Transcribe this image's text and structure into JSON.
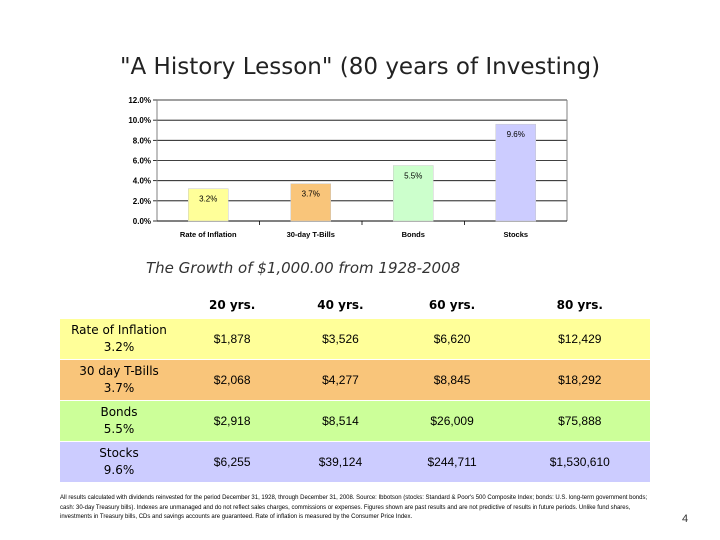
{
  "slide": {
    "title": "\"A History Lesson\" (80 years of Investing)",
    "subtitle": "The Growth of $1,000.00 from 1928-2008",
    "page_number": "4",
    "footnote": "All results calculated with dividends reinvested for the period December 31, 1928, through December 31, 2008. Source: Ibbotson (stocks: Standard & Poor's 500 Composite Index; bonds: U.S. long-term government bonds; cash: 30-day Treasury bills). Indexes are unmanaged and do not reflect sales charges, commissions or expenses. Figures shown are past results and are not predictive of results in future periods. Unlike fund shares, investments in Treasury bills, CDs and savings accounts are guaranteed. Rate of inflation is measured by the Consumer Price Index."
  },
  "chart_data": {
    "type": "bar",
    "categories": [
      "Rate of Inflation",
      "30-day T-Bills",
      "Bonds",
      "Stocks"
    ],
    "values": [
      3.2,
      3.7,
      5.5,
      9.6
    ],
    "data_labels": [
      "3.2%",
      "3.7%",
      "5.5%",
      "9.6%"
    ],
    "colors": [
      "#ffff99",
      "#f9c57a",
      "#ccffcc",
      "#ccccff"
    ],
    "ylim": [
      0,
      12
    ],
    "yticks": [
      0,
      2,
      4,
      6,
      8,
      10,
      12
    ],
    "ytick_labels": [
      "0.0%",
      "2.0%",
      "4.0%",
      "6.0%",
      "8.0%",
      "10.0%",
      "12.0%"
    ],
    "grid": true,
    "legend": "none"
  },
  "table": {
    "columns": [
      "20 yrs.",
      "40 yrs.",
      "60 yrs.",
      "80 yrs."
    ],
    "rows": [
      {
        "name": "Rate of Inflation",
        "rate": "3.2%",
        "values": [
          "$1,878",
          "$3,526",
          "$6,620",
          "$12,429"
        ]
      },
      {
        "name": "30 day T-Bills",
        "rate": "3.7%",
        "values": [
          "$2,068",
          "$4,277",
          "$8,845",
          "$18,292"
        ]
      },
      {
        "name": "Bonds",
        "rate": "5.5%",
        "values": [
          "$2,918",
          "$8,514",
          "$26,009",
          "$75,888"
        ]
      },
      {
        "name": "Stocks",
        "rate": "9.6%",
        "values": [
          "$6,255",
          "$39,124",
          "$244,711",
          "$1,530,610"
        ]
      }
    ]
  }
}
